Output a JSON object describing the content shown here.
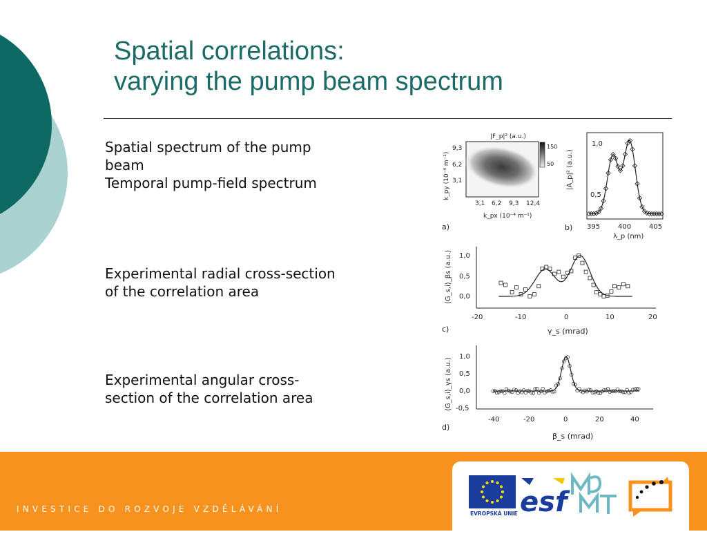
{
  "slide": {
    "title_line1": "Spatial correlations:",
    "title_line2": "varying the pump beam spectrum",
    "captions": {
      "a_line1": "Spatial spectrum of the pump",
      "a_line2": "beam",
      "a_line3": "Temporal pump-field spectrum",
      "b_line1": "Experimental radial cross-section",
      "b_line2": "of the correlation area",
      "c_line1": "Experimental angular cross-",
      "c_line2": "section of the correlation area"
    },
    "footer_text": "INVESTICE DO ROZVOJE VZDĚLÁVÁNÍ",
    "logos": {
      "eu_caption": "EVROPSKÁ UNIE",
      "esf_text": "esf"
    },
    "colors": {
      "title": "#1c6b66",
      "footer": "#f7921e",
      "circle_dark": "#0e6864",
      "circle_light": "#a9d2d0"
    }
  },
  "figure": {
    "panel_a": {
      "label": "a)",
      "colorbar_title": "|F_p|² (a.u.)",
      "colorbar_ticks": [
        "150",
        "50"
      ],
      "ylabel": "k_py (10⁻⁴ m⁻¹)",
      "xlabel": "k_px (10⁻⁴ m⁻¹)",
      "yticks": [
        "9,3",
        "6,2",
        "3,1"
      ],
      "xticks": [
        "3,1",
        "6,2",
        "9,3",
        "12,4"
      ]
    },
    "panel_b": {
      "label": "b)",
      "ylabel": "|A_p|² (a.u.)",
      "xlabel": "λ_p (nm)",
      "yticks": [
        "1,0",
        "0,5"
      ],
      "xticks": [
        "395",
        "400",
        "405"
      ]
    },
    "panel_c": {
      "label": "c)",
      "ylabel": "⟨G_s,i⟩_βs (a.u.)",
      "xlabel": "γ_s (mrad)",
      "yticks": [
        "1,0",
        "0,5",
        "0,0"
      ],
      "xticks": [
        "-20",
        "-10",
        "0",
        "10",
        "20"
      ]
    },
    "panel_d": {
      "label": "d)",
      "ylabel": "⟨G_s,i⟩_γs (a.u.)",
      "xlabel": "β_s (mrad)",
      "yticks": [
        "1,0",
        "0,5",
        "0,0",
        "-0,5"
      ],
      "xticks": [
        "-40",
        "-20",
        "0",
        "20",
        "40"
      ]
    }
  }
}
